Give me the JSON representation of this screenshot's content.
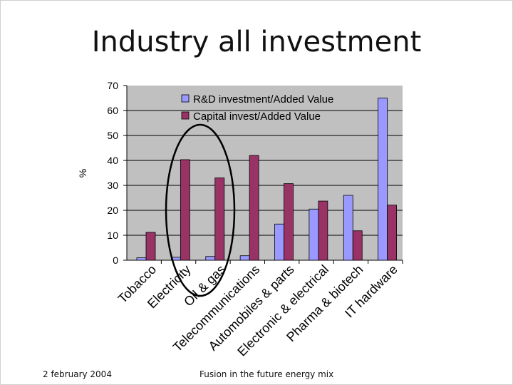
{
  "slide": {
    "title": "Industry all investment",
    "footer_left": "2 february 2004",
    "footer_center": "Fusion in the future energy mix"
  },
  "chart_data": {
    "type": "bar",
    "title": "Industry all investment",
    "xlabel": "",
    "ylabel": "%",
    "ylim": [
      0,
      70
    ],
    "yticks": [
      0,
      10,
      20,
      30,
      40,
      50,
      60,
      70
    ],
    "categories": [
      "Tobacco",
      "Electricity",
      "Oil & gas",
      "Telecommunications",
      "Automobiles & parts",
      "Electronic & electrical",
      "Pharma & biotech",
      "IT hardware"
    ],
    "series": [
      {
        "name": "R&D investment/Added Value",
        "color": "#9999ff",
        "values": [
          1.0,
          1.2,
          1.5,
          1.8,
          14.5,
          20.5,
          26.0,
          65.0
        ]
      },
      {
        "name": "Capital invest/Added Value",
        "color": "#993366",
        "values": [
          11.2,
          40.3,
          33.0,
          42.0,
          30.7,
          23.7,
          11.8,
          22.1
        ]
      }
    ],
    "grid": true,
    "legend": "top-right",
    "annotations": [
      "ellipse highlighting Electricity and Oil & gas"
    ]
  }
}
